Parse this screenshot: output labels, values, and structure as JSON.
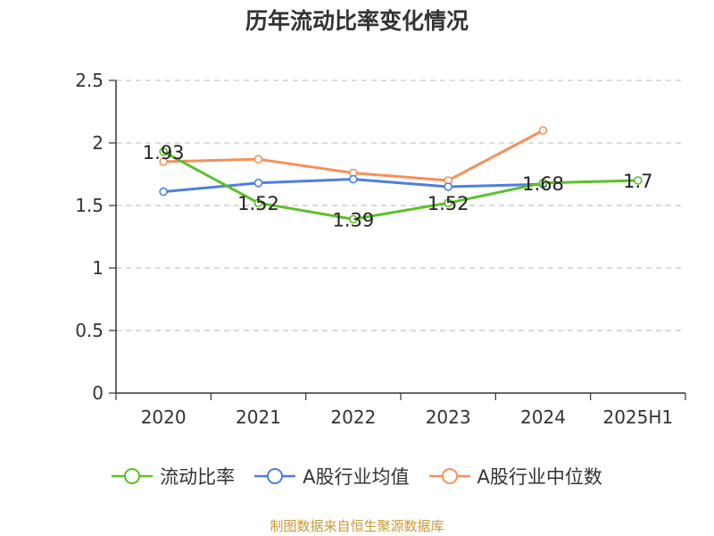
{
  "chart_data": {
    "type": "line",
    "title": "历年流动比率变化情况",
    "categories": [
      "2020",
      "2021",
      "2022",
      "2023",
      "2024",
      "2025H1"
    ],
    "ylim": [
      0,
      2.5
    ],
    "yticks": [
      "0",
      "0.5",
      "1",
      "1.5",
      "2",
      "2.5"
    ],
    "grid": true,
    "legend_position": "bottom",
    "series": [
      {
        "name": "流动比率",
        "color": "#5cbf2a",
        "values": [
          1.93,
          1.52,
          1.39,
          1.52,
          1.68,
          1.7
        ],
        "labels": [
          "1.93",
          "1.52",
          "1.39",
          "1.52",
          "1.68",
          "1.7"
        ]
      },
      {
        "name": "A股行业均值",
        "color": "#4f7fde",
        "values": [
          1.61,
          1.68,
          1.71,
          1.65,
          1.67,
          null
        ]
      },
      {
        "name": "A股行业中位数",
        "color": "#f5905a",
        "values": [
          1.85,
          1.87,
          1.76,
          1.7,
          2.1,
          null
        ]
      }
    ]
  },
  "source": "制图数据来自恒生聚源数据库"
}
